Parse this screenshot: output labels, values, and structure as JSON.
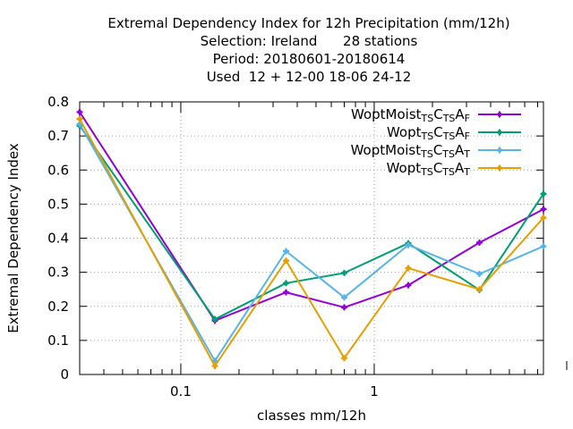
{
  "chart_data": {
    "type": "line",
    "title_lines": [
      "Extremal Dependency Index  for 12h Precipitation (mm/12h)",
      "Selection: Ireland      28 stations",
      "Period: 20180601-20180614",
      "Used  12 + 12-00 18-06 24-12"
    ],
    "xlabel": "classes mm/12h",
    "ylabel": "Extremal Dependency Index",
    "x_scale": "log",
    "xlim": [
      0.03,
      7.5
    ],
    "ylim": [
      0,
      0.8
    ],
    "x_ticks": [
      {
        "value": 0.1,
        "label": "0.1"
      },
      {
        "value": 1,
        "label": "1"
      }
    ],
    "y_ticks": [
      {
        "value": 0,
        "label": "0"
      },
      {
        "value": 0.1,
        "label": "0.1"
      },
      {
        "value": 0.2,
        "label": "0.2"
      },
      {
        "value": 0.3,
        "label": "0.3"
      },
      {
        "value": 0.4,
        "label": "0.4"
      },
      {
        "value": 0.5,
        "label": "0.5"
      },
      {
        "value": 0.6,
        "label": "0.6"
      },
      {
        "value": 0.7,
        "label": "0.7"
      },
      {
        "value": 0.8,
        "label": "0.8"
      }
    ],
    "grid": true,
    "legend_position": "top-right",
    "x": [
      0.03,
      0.15,
      0.35,
      0.7,
      1.5,
      3.5,
      7.5
    ],
    "series": [
      {
        "name_base": "WoptMoist",
        "name_parts": [
          "TS",
          "C",
          "TS",
          "A",
          "F"
        ],
        "color": "#9400d3",
        "values": [
          0.77,
          0.158,
          0.241,
          0.197,
          0.262,
          0.387,
          0.485
        ]
      },
      {
        "name_base": "Wopt",
        "name_parts": [
          "TS",
          "C",
          "TS",
          "A",
          "F"
        ],
        "color": "#009e73",
        "values": [
          0.73,
          0.162,
          0.268,
          0.298,
          0.385,
          0.248,
          0.53
        ]
      },
      {
        "name_base": "WoptMoist",
        "name_parts": [
          "TS",
          "C",
          "TS",
          "A",
          "T"
        ],
        "color": "#56b4e9",
        "values": [
          0.735,
          0.04,
          0.362,
          0.226,
          0.38,
          0.295,
          0.376
        ]
      },
      {
        "name_base": "Wopt",
        "name_parts": [
          "TS",
          "C",
          "TS",
          "A",
          "T"
        ],
        "color": "#e69f00",
        "values": [
          0.75,
          0.025,
          0.334,
          0.048,
          0.312,
          0.25,
          0.46
        ]
      }
    ]
  }
}
